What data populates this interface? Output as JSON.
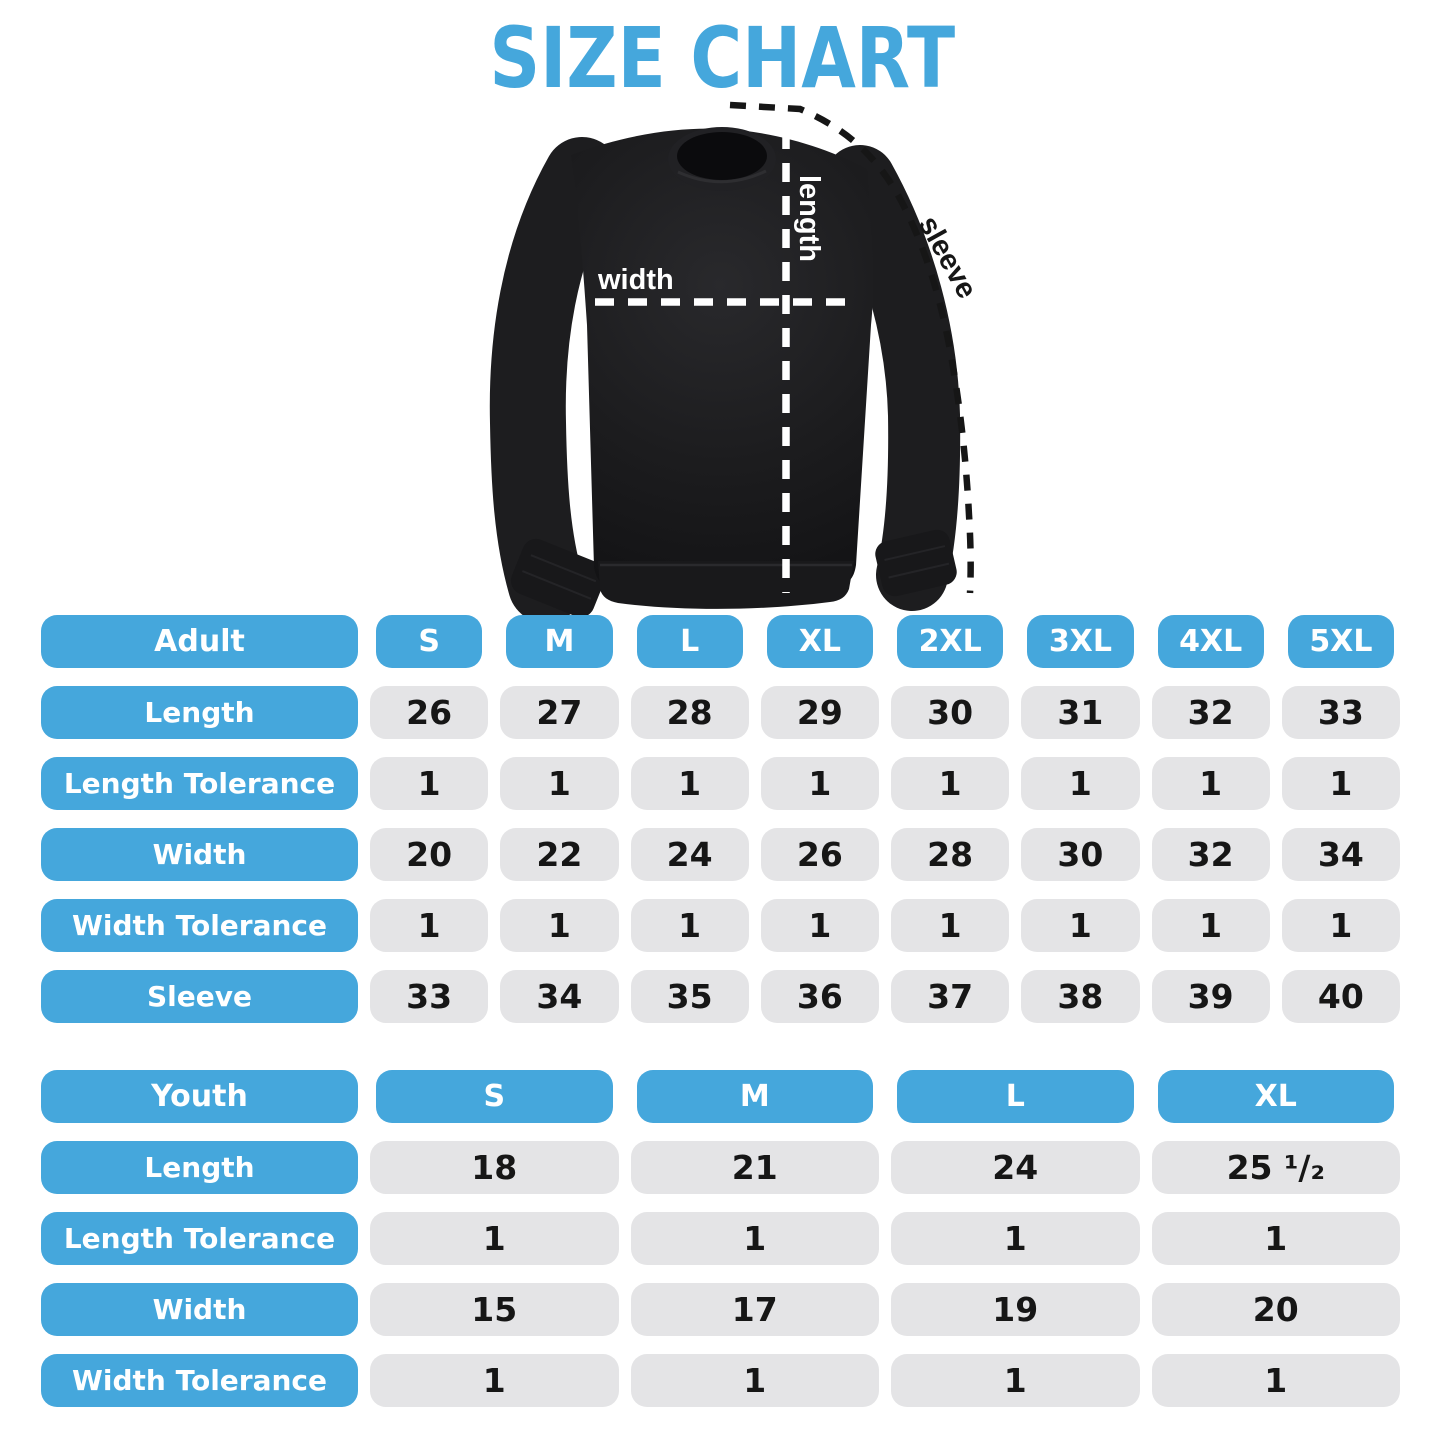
{
  "title": "SIZE CHART",
  "colors": {
    "accent": "#45A7DC",
    "cell_background": "#E4E4E6",
    "value_text": "#161616",
    "header_text": "#FFFFFF",
    "page_background": "#FFFFFF",
    "garment": "#1C1C1E",
    "dashed_line_light": "#FFFFFF",
    "dashed_line_dark": "#161616"
  },
  "diagram": {
    "garment": "black crewneck sweatshirt",
    "width_label": "width",
    "length_label": "length",
    "sleeve_label": "sleeve"
  },
  "chart_data": [
    {
      "type": "table",
      "title": "Adult",
      "columns": [
        "Adult",
        "S",
        "M",
        "L",
        "XL",
        "2XL",
        "3XL",
        "4XL",
        "5XL"
      ],
      "rows": [
        {
          "label": "Length",
          "values": [
            "26",
            "27",
            "28",
            "29",
            "30",
            "31",
            "32",
            "33"
          ]
        },
        {
          "label": "Length Tolerance",
          "values": [
            "1",
            "1",
            "1",
            "1",
            "1",
            "1",
            "1",
            "1"
          ]
        },
        {
          "label": "Width",
          "values": [
            "20",
            "22",
            "24",
            "26",
            "28",
            "30",
            "32",
            "34"
          ]
        },
        {
          "label": "Width Tolerance",
          "values": [
            "1",
            "1",
            "1",
            "1",
            "1",
            "1",
            "1",
            "1"
          ]
        },
        {
          "label": "Sleeve",
          "values": [
            "33",
            "34",
            "35",
            "36",
            "37",
            "38",
            "39",
            "40"
          ]
        }
      ]
    },
    {
      "type": "table",
      "title": "Youth",
      "columns": [
        "Youth",
        "S",
        "M",
        "L",
        "XL"
      ],
      "rows": [
        {
          "label": "Length",
          "values": [
            "18",
            "21",
            "24",
            "25 ¹/₂"
          ]
        },
        {
          "label": "Length Tolerance",
          "values": [
            "1",
            "1",
            "1",
            "1"
          ]
        },
        {
          "label": "Width",
          "values": [
            "15",
            "17",
            "19",
            "20"
          ]
        },
        {
          "label": "Width Tolerance",
          "values": [
            "1",
            "1",
            "1",
            "1"
          ]
        }
      ]
    }
  ]
}
